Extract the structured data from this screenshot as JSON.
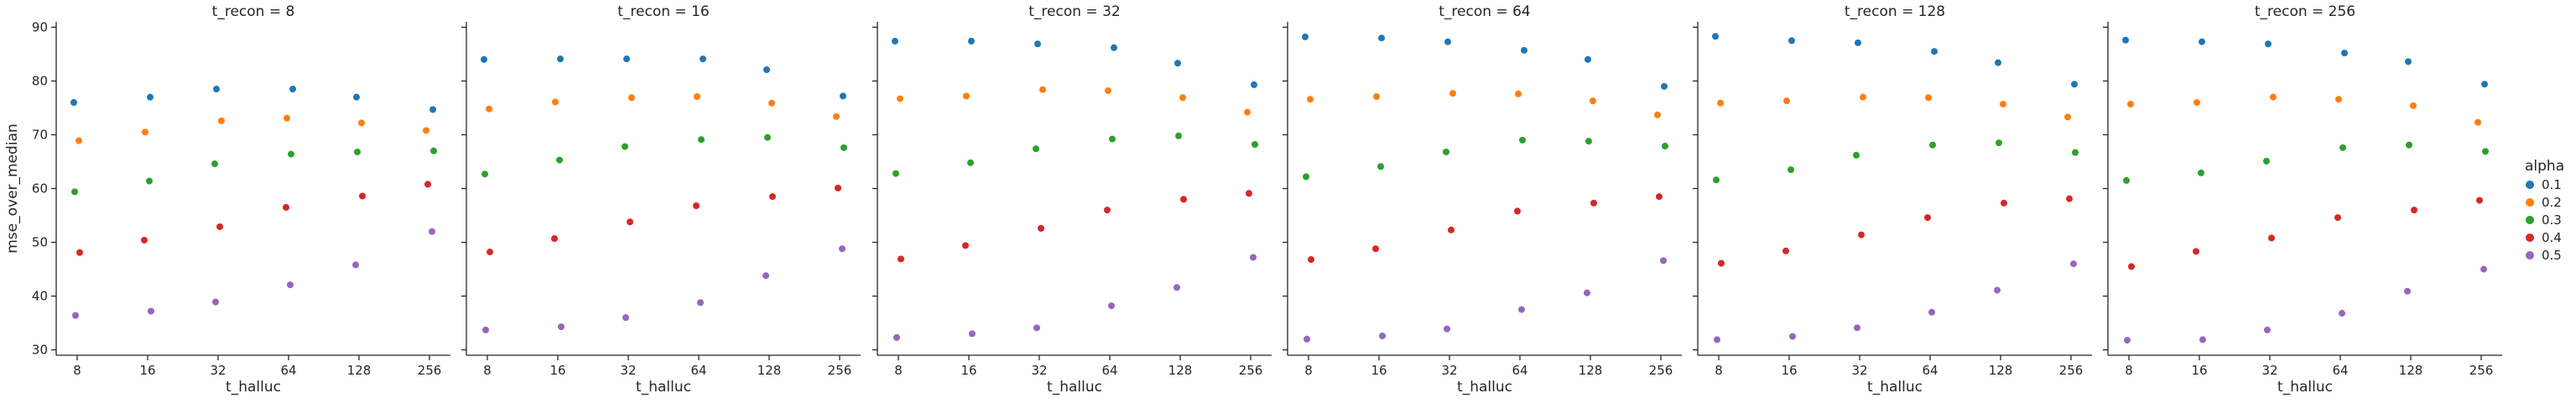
{
  "chart_data": {
    "type": "scatter",
    "facet_var": "t_recon",
    "facets": [
      {
        "title": "t_recon = 8",
        "series": [
          {
            "name": "0.1",
            "x": [
              "8",
              "16",
              "32",
              "64",
              "128",
              "256"
            ],
            "y": [
              76.0,
              77.0,
              78.5,
              78.5,
              77.0,
              74.7
            ]
          },
          {
            "name": "0.2",
            "x": [
              "8",
              "16",
              "32",
              "64",
              "128",
              "256"
            ],
            "y": [
              68.9,
              70.5,
              72.6,
              73.1,
              72.2,
              70.8
            ]
          },
          {
            "name": "0.3",
            "x": [
              "8",
              "16",
              "32",
              "64",
              "128",
              "256"
            ],
            "y": [
              59.4,
              61.4,
              64.6,
              66.4,
              66.8,
              67.0
            ]
          },
          {
            "name": "0.4",
            "x": [
              "8",
              "16",
              "32",
              "64",
              "128",
              "256"
            ],
            "y": [
              48.1,
              50.4,
              52.9,
              56.5,
              58.6,
              60.8
            ]
          },
          {
            "name": "0.5",
            "x": [
              "8",
              "16",
              "32",
              "64",
              "128",
              "256"
            ],
            "y": [
              36.4,
              37.2,
              38.9,
              42.1,
              45.8,
              52.0
            ]
          }
        ]
      },
      {
        "title": "t_recon = 16",
        "series": [
          {
            "name": "0.1",
            "x": [
              "8",
              "16",
              "32",
              "64",
              "128",
              "256"
            ],
            "y": [
              84.0,
              84.1,
              84.1,
              84.1,
              82.1,
              77.2
            ]
          },
          {
            "name": "0.2",
            "x": [
              "8",
              "16",
              "32",
              "64",
              "128",
              "256"
            ],
            "y": [
              74.8,
              76.1,
              76.9,
              77.1,
              75.9,
              73.4
            ]
          },
          {
            "name": "0.3",
            "x": [
              "8",
              "16",
              "32",
              "64",
              "128",
              "256"
            ],
            "y": [
              62.7,
              65.3,
              67.8,
              69.1,
              69.5,
              67.6
            ]
          },
          {
            "name": "0.4",
            "x": [
              "8",
              "16",
              "32",
              "64",
              "128",
              "256"
            ],
            "y": [
              48.2,
              50.7,
              53.8,
              56.8,
              58.5,
              60.1
            ]
          },
          {
            "name": "0.5",
            "x": [
              "8",
              "16",
              "32",
              "64",
              "128",
              "256"
            ],
            "y": [
              33.7,
              34.3,
              36.0,
              38.8,
              43.8,
              48.8
            ]
          }
        ]
      },
      {
        "title": "t_recon = 32",
        "series": [
          {
            "name": "0.1",
            "x": [
              "8",
              "16",
              "32",
              "64",
              "128",
              "256"
            ],
            "y": [
              87.4,
              87.4,
              86.9,
              86.2,
              83.3,
              79.3
            ]
          },
          {
            "name": "0.2",
            "x": [
              "8",
              "16",
              "32",
              "64",
              "128",
              "256"
            ],
            "y": [
              76.7,
              77.2,
              78.4,
              78.2,
              76.9,
              74.2
            ]
          },
          {
            "name": "0.3",
            "x": [
              "8",
              "16",
              "32",
              "64",
              "128",
              "256"
            ],
            "y": [
              62.8,
              64.8,
              67.4,
              69.2,
              69.8,
              68.2
            ]
          },
          {
            "name": "0.4",
            "x": [
              "8",
              "16",
              "32",
              "64",
              "128",
              "256"
            ],
            "y": [
              46.9,
              49.4,
              52.6,
              56.0,
              58.0,
              59.1
            ]
          },
          {
            "name": "0.5",
            "x": [
              "8",
              "16",
              "32",
              "64",
              "128",
              "256"
            ],
            "y": [
              32.3,
              33.0,
              34.1,
              38.2,
              41.6,
              47.2
            ]
          }
        ]
      },
      {
        "title": "t_recon = 64",
        "series": [
          {
            "name": "0.1",
            "x": [
              "8",
              "16",
              "32",
              "64",
              "128",
              "256"
            ],
            "y": [
              88.2,
              88.0,
              87.3,
              85.7,
              84.0,
              79.0
            ]
          },
          {
            "name": "0.2",
            "x": [
              "8",
              "16",
              "32",
              "64",
              "128",
              "256"
            ],
            "y": [
              76.6,
              77.1,
              77.7,
              77.6,
              76.3,
              73.7
            ]
          },
          {
            "name": "0.3",
            "x": [
              "8",
              "16",
              "32",
              "64",
              "128",
              "256"
            ],
            "y": [
              62.2,
              64.1,
              66.8,
              69.0,
              68.8,
              67.9
            ]
          },
          {
            "name": "0.4",
            "x": [
              "8",
              "16",
              "32",
              "64",
              "128",
              "256"
            ],
            "y": [
              46.8,
              48.8,
              52.3,
              55.8,
              57.3,
              58.5
            ]
          },
          {
            "name": "0.5",
            "x": [
              "8",
              "16",
              "32",
              "64",
              "128",
              "256"
            ],
            "y": [
              32.0,
              32.6,
              33.9,
              37.5,
              40.6,
              46.6
            ]
          }
        ]
      },
      {
        "title": "t_recon = 128",
        "series": [
          {
            "name": "0.1",
            "x": [
              "8",
              "16",
              "32",
              "64",
              "128",
              "256"
            ],
            "y": [
              88.3,
              87.5,
              87.1,
              85.5,
              83.4,
              79.4
            ]
          },
          {
            "name": "0.2",
            "x": [
              "8",
              "16",
              "32",
              "64",
              "128",
              "256"
            ],
            "y": [
              75.9,
              76.3,
              77.0,
              76.9,
              75.7,
              73.3
            ]
          },
          {
            "name": "0.3",
            "x": [
              "8",
              "16",
              "32",
              "64",
              "128",
              "256"
            ],
            "y": [
              61.6,
              63.5,
              66.2,
              68.1,
              68.5,
              66.7
            ]
          },
          {
            "name": "0.4",
            "x": [
              "8",
              "16",
              "32",
              "64",
              "128",
              "256"
            ],
            "y": [
              46.1,
              48.4,
              51.4,
              54.6,
              57.3,
              58.1
            ]
          },
          {
            "name": "0.5",
            "x": [
              "8",
              "16",
              "32",
              "64",
              "128",
              "256"
            ],
            "y": [
              31.9,
              32.5,
              34.1,
              37.0,
              41.1,
              46.0
            ]
          }
        ]
      },
      {
        "title": "t_recon = 256",
        "series": [
          {
            "name": "0.1",
            "x": [
              "8",
              "16",
              "32",
              "64",
              "128",
              "256"
            ],
            "y": [
              87.6,
              87.3,
              86.9,
              85.2,
              83.6,
              79.4
            ]
          },
          {
            "name": "0.2",
            "x": [
              "8",
              "16",
              "32",
              "64",
              "128",
              "256"
            ],
            "y": [
              75.7,
              76.0,
              77.0,
              76.6,
              75.4,
              72.3
            ]
          },
          {
            "name": "0.3",
            "x": [
              "8",
              "16",
              "32",
              "64",
              "128",
              "256"
            ],
            "y": [
              61.5,
              62.9,
              65.1,
              67.6,
              68.1,
              66.9
            ]
          },
          {
            "name": "0.4",
            "x": [
              "8",
              "16",
              "32",
              "64",
              "128",
              "256"
            ],
            "y": [
              45.5,
              48.3,
              50.8,
              54.6,
              56.0,
              57.8
            ]
          },
          {
            "name": "0.5",
            "x": [
              "8",
              "16",
              "32",
              "64",
              "128",
              "256"
            ],
            "y": [
              31.8,
              31.9,
              33.7,
              36.8,
              40.9,
              45.0
            ]
          }
        ]
      }
    ],
    "x_categories": [
      "8",
      "16",
      "32",
      "64",
      "128",
      "256"
    ],
    "xlabel": "t_halluc",
    "ylabel": "mse_over_median",
    "ylim": [
      29,
      91
    ],
    "yticks": [
      30,
      40,
      50,
      60,
      70,
      80,
      90
    ],
    "sharey": true,
    "grid": false,
    "legend": {
      "title": "alpha",
      "placement": "right",
      "entries": [
        "0.1",
        "0.2",
        "0.3",
        "0.4",
        "0.5"
      ]
    },
    "colors": {
      "0.1": "#1f77b4",
      "0.2": "#ff7f0e",
      "0.3": "#2ca02c",
      "0.4": "#d62728",
      "0.5": "#9467bd"
    }
  }
}
